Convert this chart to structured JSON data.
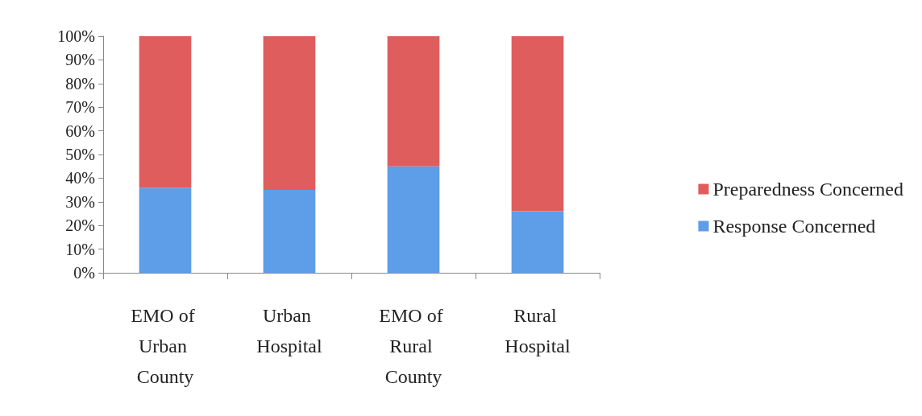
{
  "chart_data": {
    "type": "bar",
    "stacked": true,
    "categories": [
      "EMO of Urban County",
      "Urban Hospital",
      "EMO of Rural County",
      "Rural Hospital"
    ],
    "series": [
      {
        "name": "Response Concerned",
        "color": "#5e9de8",
        "values": [
          36,
          35,
          45,
          26
        ]
      },
      {
        "name": "Preparedness Concerned",
        "color": "#e05d5d",
        "values": [
          64,
          65,
          55,
          74
        ]
      }
    ],
    "ylim": [
      0,
      100
    ],
    "yticks": [
      {
        "value": 0,
        "label": "0%"
      },
      {
        "value": 10,
        "label": "10%"
      },
      {
        "value": 20,
        "label": "20%"
      },
      {
        "value": 30,
        "label": "30%"
      },
      {
        "value": 40,
        "label": "40%"
      },
      {
        "value": 50,
        "label": "50%"
      },
      {
        "value": 60,
        "label": "60%"
      },
      {
        "value": 70,
        "label": "70%"
      },
      {
        "value": 80,
        "label": "80%"
      },
      {
        "value": 90,
        "label": "90%"
      },
      {
        "value": 100,
        "label": "100%"
      }
    ],
    "grid": false,
    "legend": "right"
  }
}
